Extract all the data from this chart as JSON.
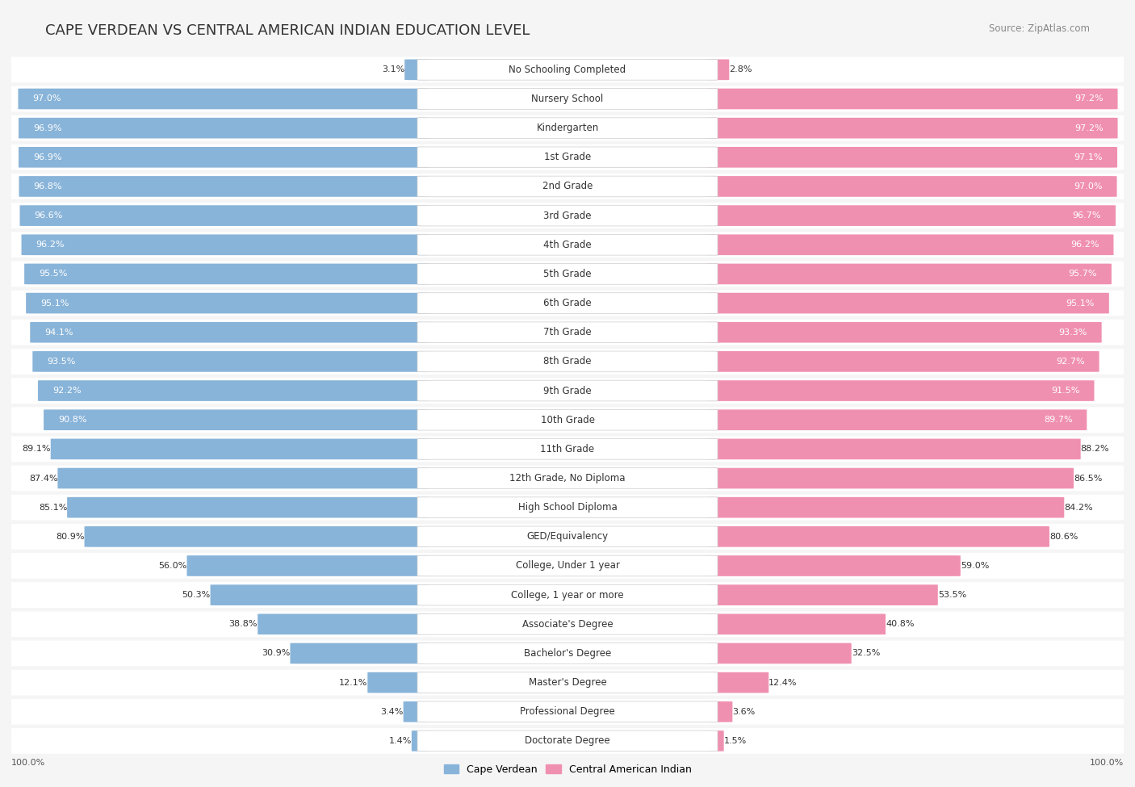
{
  "title": "CAPE VERDEAN VS CENTRAL AMERICAN INDIAN EDUCATION LEVEL",
  "source": "Source: ZipAtlas.com",
  "categories": [
    "No Schooling Completed",
    "Nursery School",
    "Kindergarten",
    "1st Grade",
    "2nd Grade",
    "3rd Grade",
    "4th Grade",
    "5th Grade",
    "6th Grade",
    "7th Grade",
    "8th Grade",
    "9th Grade",
    "10th Grade",
    "11th Grade",
    "12th Grade, No Diploma",
    "High School Diploma",
    "GED/Equivalency",
    "College, Under 1 year",
    "College, 1 year or more",
    "Associate's Degree",
    "Bachelor's Degree",
    "Master's Degree",
    "Professional Degree",
    "Doctorate Degree"
  ],
  "cape_verdean": [
    3.1,
    97.0,
    96.9,
    96.9,
    96.8,
    96.6,
    96.2,
    95.5,
    95.1,
    94.1,
    93.5,
    92.2,
    90.8,
    89.1,
    87.4,
    85.1,
    80.9,
    56.0,
    50.3,
    38.8,
    30.9,
    12.1,
    3.4,
    1.4
  ],
  "central_american_indian": [
    2.8,
    97.2,
    97.2,
    97.1,
    97.0,
    96.7,
    96.2,
    95.7,
    95.1,
    93.3,
    92.7,
    91.5,
    89.7,
    88.2,
    86.5,
    84.2,
    80.6,
    59.0,
    53.5,
    40.8,
    32.5,
    12.4,
    3.6,
    1.5
  ],
  "blue_color": "#89b4d9",
  "pink_color": "#f090b0",
  "bg_color": "#f5f5f5",
  "bar_bg_color": "#ffffff",
  "title_fontsize": 13,
  "label_fontsize": 8.5,
  "value_fontsize": 8,
  "legend_fontsize": 9
}
